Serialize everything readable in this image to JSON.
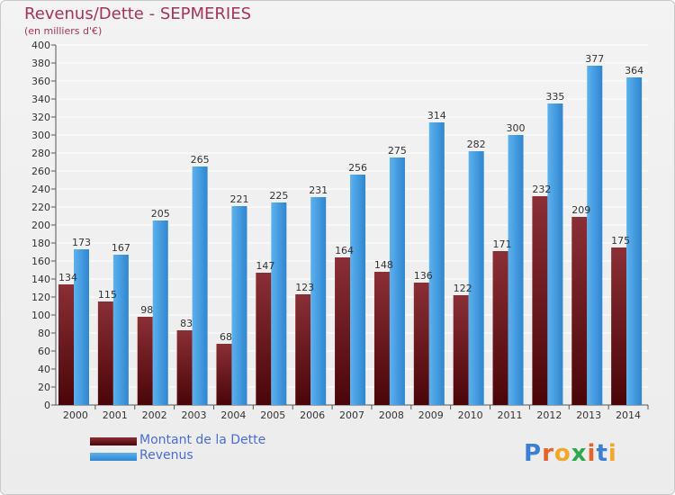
{
  "title": "Revenus/Dette - SEPMERIES",
  "subtitle": "(en milliers d'€)",
  "legend": [
    {
      "label": "Montant de la Dette",
      "color": "#6b1a1f"
    },
    {
      "label": "Revenus",
      "color": "#4aa3e6"
    }
  ],
  "logo": {
    "text": "Proxiti"
  },
  "colors": {
    "debt_top": "#8a2f35",
    "debt_bottom": "#4a0508",
    "revenue_top": "#5cb1ee",
    "revenue_bottom": "#2f86cf",
    "axis": "#555555",
    "grid": "#ffffff",
    "text": "#333333"
  },
  "chart_data": {
    "type": "bar",
    "categories": [
      "2000",
      "2001",
      "2002",
      "2003",
      "2004",
      "2005",
      "2006",
      "2007",
      "2008",
      "2009",
      "2010",
      "2011",
      "2012",
      "2013",
      "2014"
    ],
    "series": [
      {
        "name": "Montant de la Dette",
        "values": [
          134,
          115,
          98,
          83,
          68,
          147,
          123,
          164,
          148,
          136,
          122,
          171,
          232,
          209,
          175
        ]
      },
      {
        "name": "Revenus",
        "values": [
          173,
          167,
          205,
          265,
          221,
          225,
          231,
          256,
          275,
          314,
          282,
          300,
          335,
          377,
          364
        ]
      }
    ],
    "ylim": [
      0,
      400
    ],
    "ytick_step": 20,
    "grid": true
  }
}
